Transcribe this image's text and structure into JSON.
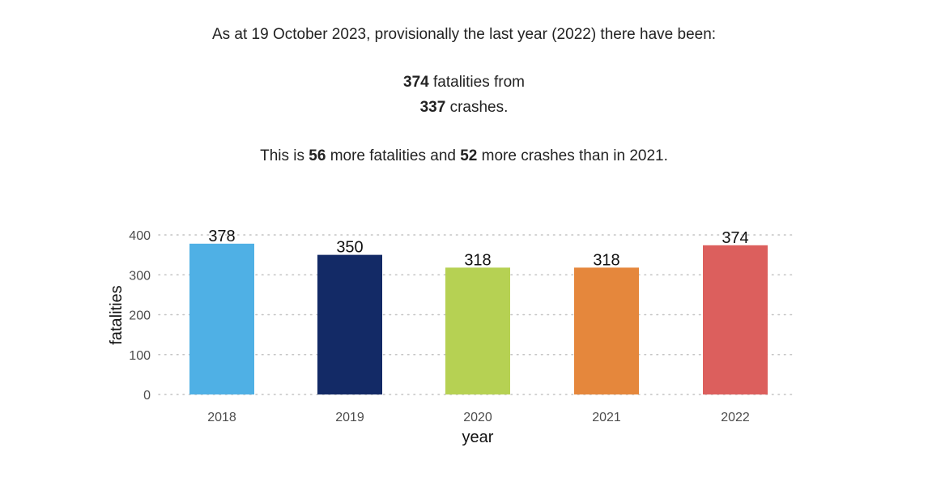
{
  "summary": {
    "intro": "As at 19 October 2023, provisionally the last year (2022) there have been:",
    "fatalities_number": "374",
    "fatalities_text": " fatalities from",
    "crashes_number": "337",
    "crashes_text": " crashes.",
    "compare_prefix": "This is ",
    "compare_fatalities_number": "56",
    "compare_middle": " more fatalities and ",
    "compare_crashes_number": "52",
    "compare_suffix": " more crashes than in 2021."
  },
  "chart_data": {
    "type": "bar",
    "categories": [
      "2018",
      "2019",
      "2020",
      "2021",
      "2022"
    ],
    "values": [
      378,
      350,
      318,
      318,
      374
    ],
    "data_labels": [
      "378",
      "350",
      "318",
      "318",
      "374"
    ],
    "colors": [
      "#4fb0e5",
      "#132a66",
      "#b6d153",
      "#e5873c",
      "#dc5f5d"
    ],
    "xlabel": "year",
    "ylabel": "fatalities",
    "ylim": [
      0,
      400
    ],
    "yticks": [
      0,
      100,
      200,
      300,
      400
    ],
    "grid": "horizontal dotted",
    "legend": "none"
  }
}
